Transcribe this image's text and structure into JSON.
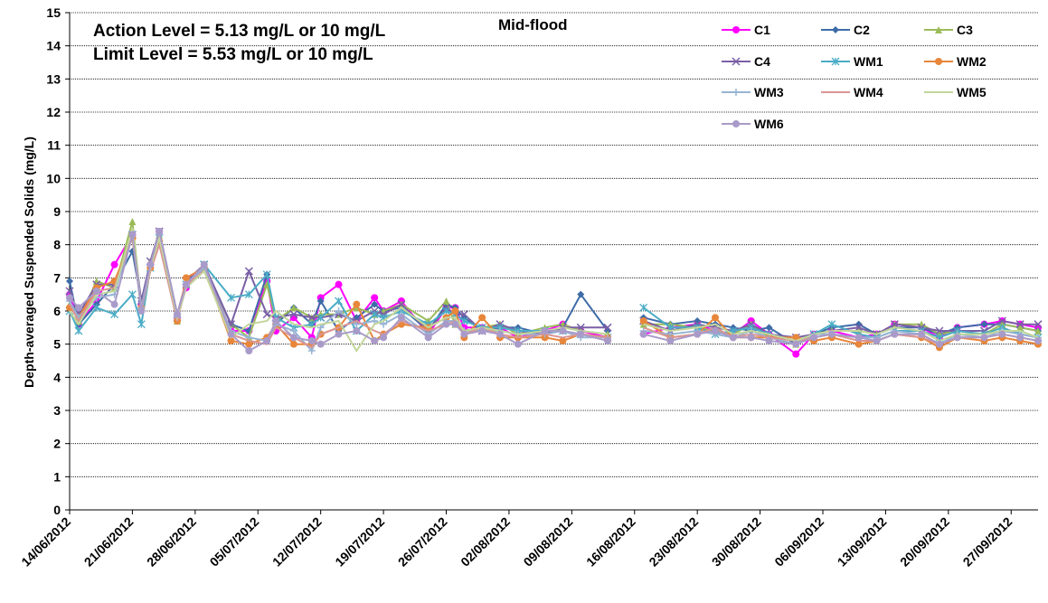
{
  "chart_data": {
    "type": "line",
    "subtitle": "Mid-flood",
    "annotations": [
      "Action Level = 5.13 mg/L or 10 mg/L",
      "Limit Level = 5.53 mg/L or 10 mg/L"
    ],
    "ylabel": "Depth-averaged Suspended Solids (mg/L)",
    "xlabel": "",
    "ylim": [
      0,
      15
    ],
    "y_ticks": [
      0,
      1,
      2,
      3,
      4,
      5,
      6,
      7,
      8,
      9,
      10,
      11,
      12,
      13,
      14,
      15
    ],
    "x_range": [
      "2012-06-14",
      "2012-09-30"
    ],
    "x_tick_labels": [
      "14/06/2012",
      "21/06/2012",
      "28/06/2012",
      "05/07/2012",
      "12/07/2012",
      "19/07/2012",
      "26/07/2012",
      "02/08/2012",
      "09/08/2012",
      "16/08/2012",
      "23/08/2012",
      "30/08/2012",
      "06/09/2012",
      "13/09/2012",
      "20/09/2012",
      "27/09/2012"
    ],
    "x_tick_dates": [
      "2012-06-14",
      "2012-06-21",
      "2012-06-28",
      "2012-07-05",
      "2012-07-12",
      "2012-07-19",
      "2012-07-26",
      "2012-08-02",
      "2012-08-09",
      "2012-08-16",
      "2012-08-23",
      "2012-08-30",
      "2012-09-06",
      "2012-09-13",
      "2012-09-20",
      "2012-09-27"
    ],
    "grid": "horizontal dotted",
    "legend_position": "top-right",
    "x": [
      "2012-06-14",
      "2012-06-15",
      "2012-06-17",
      "2012-06-19",
      "2012-06-21",
      "2012-06-22",
      "2012-06-23",
      "2012-06-24",
      "2012-06-26",
      "2012-06-27",
      "2012-06-29",
      "2012-07-02",
      "2012-07-04",
      "2012-07-06",
      "2012-07-07",
      "2012-07-09",
      "2012-07-11",
      "2012-07-12",
      "2012-07-14",
      "2012-07-16",
      "2012-07-18",
      "2012-07-19",
      "2012-07-21",
      "2012-07-24",
      "2012-07-26",
      "2012-07-27",
      "2012-07-28",
      "2012-07-30",
      "2012-08-01",
      "2012-08-03",
      "2012-08-06",
      "2012-08-08",
      "2012-08-10",
      "2012-08-13",
      "2012-08-17",
      "2012-08-20",
      "2012-08-23",
      "2012-08-25",
      "2012-08-27",
      "2012-08-29",
      "2012-08-31",
      "2012-09-03",
      "2012-09-05",
      "2012-09-07",
      "2012-09-10",
      "2012-09-12",
      "2012-09-14",
      "2012-09-17",
      "2012-09-19",
      "2012-09-21",
      "2012-09-24",
      "2012-09-26",
      "2012-09-28",
      "2012-09-30"
    ],
    "gaps_after": [
      "2012-08-13"
    ],
    "series": [
      {
        "name": "C1",
        "color": "#ff00ff",
        "marker": "circle",
        "values": [
          6.5,
          5.6,
          6.3,
          7.4,
          8.3,
          6.2,
          7.4,
          8.4,
          5.8,
          6.7,
          7.3,
          5.4,
          5.4,
          6.9,
          5.4,
          5.8,
          5.2,
          6.4,
          6.8,
          5.7,
          6.4,
          6.0,
          6.3,
          5.3,
          6.1,
          6.1,
          5.5,
          5.5,
          5.5,
          5.2,
          5.4,
          5.6,
          5.4,
          5.2,
          5.3,
          5.5,
          5.6,
          5.4,
          5.3,
          5.7,
          5.3,
          4.7,
          5.3,
          5.4,
          5.2,
          5.3,
          5.6,
          5.5,
          5.2,
          5.5,
          5.6,
          5.7,
          5.6,
          5.5
        ]
      },
      {
        "name": "C2",
        "color": "#3e6ca8",
        "marker": "diamond",
        "values": [
          6.9,
          5.6,
          6.2,
          6.8,
          7.8,
          6.3,
          7.4,
          8.4,
          5.9,
          6.8,
          7.4,
          5.6,
          5.4,
          7.1,
          5.6,
          6.1,
          5.6,
          6.3,
          5.4,
          5.8,
          6.2,
          6.0,
          6.1,
          5.4,
          6.2,
          6.1,
          5.8,
          5.4,
          5.5,
          5.5,
          5.3,
          5.5,
          6.5,
          5.4,
          5.8,
          5.6,
          5.7,
          5.6,
          5.5,
          5.4,
          5.5,
          5.0,
          5.3,
          5.5,
          5.6,
          5.3,
          5.5,
          5.5,
          5.3,
          5.5,
          5.6,
          5.6,
          5.5,
          5.4
        ]
      },
      {
        "name": "C3",
        "color": "#9bbb59",
        "marker": "triangle",
        "values": [
          6.2,
          5.7,
          6.9,
          6.7,
          8.7,
          6.1,
          7.5,
          8.3,
          5.7,
          6.8,
          7.3,
          5.6,
          5.2,
          6.8,
          5.7,
          6.1,
          5.8,
          5.9,
          5.9,
          6.1,
          5.9,
          6.0,
          6.2,
          5.7,
          6.3,
          5.6,
          5.4,
          5.5,
          5.6,
          5.3,
          5.5,
          5.6,
          5.4,
          5.3,
          5.6,
          5.6,
          5.5,
          5.4,
          5.3,
          5.6,
          5.2,
          5.0,
          5.3,
          5.4,
          5.4,
          5.3,
          5.6,
          5.6,
          5.3,
          5.4,
          5.3,
          5.6,
          5.5,
          5.4
        ]
      },
      {
        "name": "C4",
        "color": "#7a5fa6",
        "marker": "x",
        "values": [
          6.6,
          5.9,
          6.8,
          6.8,
          8.3,
          6.3,
          7.5,
          8.4,
          5.9,
          6.9,
          7.4,
          5.6,
          7.2,
          5.9,
          5.8,
          5.9,
          5.8,
          5.8,
          5.9,
          5.7,
          6.0,
          5.9,
          6.2,
          5.4,
          6.1,
          5.9,
          5.9,
          5.4,
          5.6,
          5.4,
          5.3,
          5.5,
          5.5,
          5.5,
          5.7,
          5.4,
          5.6,
          5.5,
          5.4,
          5.6,
          5.3,
          5.2,
          5.3,
          5.4,
          5.5,
          5.3,
          5.6,
          5.5,
          5.4,
          5.4,
          5.4,
          5.7,
          5.6,
          5.6
        ]
      },
      {
        "name": "WM1",
        "color": "#4bacc6",
        "marker": "asterisk",
        "values": [
          6.0,
          5.4,
          6.1,
          5.9,
          6.5,
          5.6,
          7.3,
          8.2,
          5.8,
          6.8,
          7.4,
          6.4,
          6.5,
          7.1,
          5.8,
          5.5,
          5.6,
          5.8,
          6.3,
          5.4,
          5.9,
          5.8,
          6.0,
          5.6,
          6.0,
          5.9,
          5.7,
          5.5,
          5.5,
          5.4,
          5.4,
          5.4,
          5.3,
          5.2,
          6.1,
          5.5,
          5.5,
          5.3,
          5.4,
          5.5,
          5.3,
          5.1,
          5.3,
          5.6,
          5.3,
          5.2,
          5.4,
          5.4,
          5.2,
          5.4,
          5.3,
          5.5,
          5.3,
          5.2
        ]
      },
      {
        "name": "WM2",
        "color": "#e8863a",
        "marker": "circle",
        "values": [
          6.1,
          5.8,
          6.7,
          6.9,
          8.2,
          6.1,
          7.3,
          8.1,
          5.7,
          7.0,
          7.3,
          5.1,
          5.0,
          5.2,
          5.6,
          5.0,
          5.0,
          5.3,
          5.5,
          6.2,
          5.1,
          5.3,
          5.6,
          5.5,
          5.8,
          6.0,
          5.2,
          5.8,
          5.2,
          5.2,
          5.2,
          5.1,
          5.3,
          5.2,
          5.7,
          5.2,
          5.3,
          5.8,
          5.2,
          5.2,
          5.2,
          5.2,
          5.1,
          5.2,
          5.0,
          5.1,
          5.3,
          5.2,
          4.9,
          5.2,
          5.1,
          5.2,
          5.1,
          5.0
        ]
      },
      {
        "name": "WM3",
        "color": "#98b4d4",
        "marker": "plus",
        "values": [
          6.3,
          5.8,
          6.4,
          6.5,
          8.4,
          6.1,
          7.4,
          8.3,
          5.8,
          6.8,
          7.3,
          5.4,
          5.2,
          5.1,
          5.6,
          5.4,
          4.8,
          5.5,
          6.0,
          5.6,
          5.7,
          5.6,
          5.9,
          5.3,
          5.7,
          5.7,
          5.4,
          5.4,
          5.4,
          5.3,
          5.3,
          5.4,
          5.2,
          5.2,
          5.4,
          5.3,
          5.4,
          5.3,
          5.2,
          5.4,
          5.2,
          5.0,
          5.3,
          5.3,
          5.2,
          5.2,
          5.4,
          5.3,
          5.0,
          5.3,
          5.2,
          5.4,
          5.3,
          5.2
        ]
      },
      {
        "name": "WM4",
        "color": "#d99694",
        "marker": "none",
        "values": [
          6.2,
          5.7,
          6.6,
          6.7,
          8.3,
          6.0,
          7.2,
          8.0,
          5.7,
          6.8,
          7.2,
          5.3,
          5.1,
          5.0,
          5.5,
          5.2,
          4.9,
          5.3,
          5.5,
          5.7,
          5.4,
          5.3,
          5.7,
          5.4,
          5.6,
          5.7,
          5.3,
          5.5,
          5.3,
          5.2,
          5.3,
          5.2,
          5.3,
          5.2,
          5.5,
          5.2,
          5.3,
          5.5,
          5.2,
          5.3,
          5.2,
          5.1,
          5.2,
          5.3,
          5.1,
          5.1,
          5.3,
          5.2,
          5.0,
          5.2,
          5.2,
          5.3,
          5.2,
          5.1
        ]
      },
      {
        "name": "WM5",
        "color": "#c3d69b",
        "marker": "none",
        "values": [
          6.0,
          5.6,
          6.5,
          6.6,
          8.5,
          6.0,
          7.3,
          8.2,
          5.8,
          6.7,
          7.2,
          5.2,
          5.6,
          5.7,
          6.0,
          5.6,
          5.5,
          5.6,
          5.7,
          4.8,
          5.6,
          5.7,
          6.1,
          5.5,
          5.8,
          5.8,
          5.4,
          5.5,
          5.4,
          5.3,
          5.4,
          5.5,
          5.4,
          5.3,
          5.6,
          5.4,
          5.5,
          5.6,
          5.3,
          5.4,
          5.3,
          5.1,
          5.3,
          5.4,
          5.4,
          5.3,
          5.5,
          5.4,
          5.1,
          5.3,
          5.3,
          5.4,
          5.4,
          5.2
        ]
      },
      {
        "name": "WM6",
        "color": "#a99bc9",
        "marker": "circle",
        "values": [
          6.4,
          6.1,
          6.6,
          6.2,
          8.3,
          6.0,
          7.4,
          8.4,
          5.9,
          6.8,
          7.4,
          5.3,
          4.8,
          5.1,
          5.7,
          5.2,
          5.1,
          5.0,
          5.3,
          5.4,
          5.1,
          5.2,
          5.8,
          5.2,
          5.6,
          5.6,
          5.3,
          5.4,
          5.3,
          5.0,
          5.4,
          5.4,
          5.3,
          5.1,
          5.3,
          5.1,
          5.3,
          5.4,
          5.2,
          5.2,
          5.1,
          5.0,
          5.2,
          5.3,
          5.2,
          5.1,
          5.3,
          5.3,
          5.0,
          5.2,
          5.2,
          5.3,
          5.2,
          5.1
        ]
      }
    ]
  }
}
